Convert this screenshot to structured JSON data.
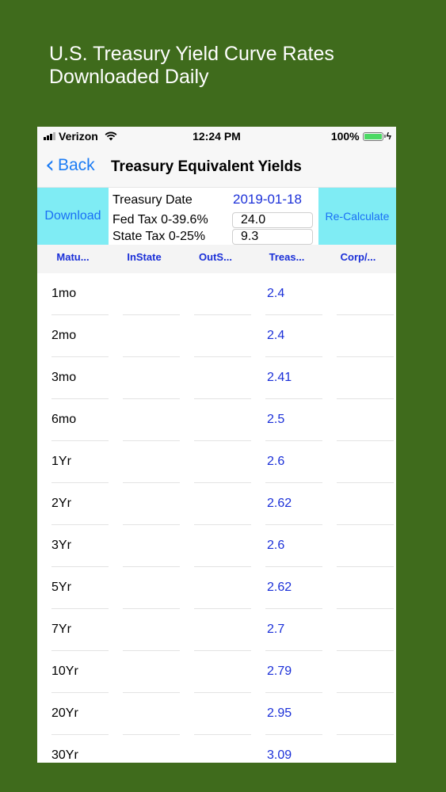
{
  "headline": {
    "line1": "U.S. Treasury Yield Curve Rates",
    "line2": "Downloaded Daily"
  },
  "status_bar": {
    "carrier": "Verizon",
    "time": "12:24 PM",
    "battery": "100%"
  },
  "nav": {
    "back_label": "Back",
    "title": "Treasury Equivalent Yields"
  },
  "controls": {
    "download_label": "Download",
    "recalc_label": "Re-Calculate",
    "date_label": "Treasury Date",
    "date_value": "2019-01-18",
    "fed_label": "Fed Tax 0-39.6%",
    "fed_value": "24.0",
    "state_label": "State Tax 0-25%",
    "state_value": "9.3"
  },
  "columns": [
    "Matu...",
    "InState",
    "OutS...",
    "Treas...",
    "Corp/..."
  ],
  "rows": [
    {
      "maturity": "1mo",
      "treasury": "2.4"
    },
    {
      "maturity": "2mo",
      "treasury": "2.4"
    },
    {
      "maturity": "3mo",
      "treasury": "2.41"
    },
    {
      "maturity": "6mo",
      "treasury": "2.5"
    },
    {
      "maturity": "1Yr",
      "treasury": "2.6"
    },
    {
      "maturity": "2Yr",
      "treasury": "2.62"
    },
    {
      "maturity": "3Yr",
      "treasury": "2.6"
    },
    {
      "maturity": "5Yr",
      "treasury": "2.62"
    },
    {
      "maturity": "7Yr",
      "treasury": "2.7"
    },
    {
      "maturity": "10Yr",
      "treasury": "2.79"
    },
    {
      "maturity": "20Yr",
      "treasury": "2.95"
    },
    {
      "maturity": "30Yr",
      "treasury": "3.09"
    }
  ],
  "colors": {
    "background": "#3f6b1c",
    "accent_blue": "#1a2fd8",
    "ios_blue": "#1c7cf4",
    "button_cyan": "#7fecf4"
  }
}
